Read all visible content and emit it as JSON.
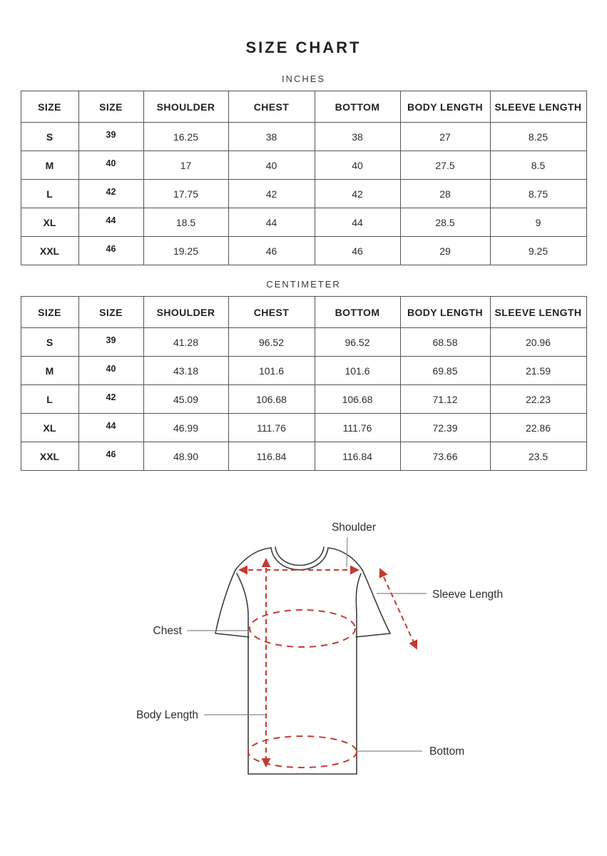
{
  "page": {
    "title": "SIZE CHART"
  },
  "tables": [
    {
      "unit_label": "INCHES",
      "headers": [
        "SIZE",
        "SIZE",
        "SHOULDER",
        "CHEST",
        "BOTTOM",
        "BODY LENGTH",
        "SLEEVE LENGTH"
      ],
      "rows": [
        [
          "S",
          "39",
          "16.25",
          "38",
          "38",
          "27",
          "8.25"
        ],
        [
          "M",
          "40",
          "17",
          "40",
          "40",
          "27.5",
          "8.5"
        ],
        [
          "L",
          "42",
          "17.75",
          "42",
          "42",
          "28",
          "8.75"
        ],
        [
          "XL",
          "44",
          "18.5",
          "44",
          "44",
          "28.5",
          "9"
        ],
        [
          "XXL",
          "46",
          "19.25",
          "46",
          "46",
          "29",
          "9.25"
        ]
      ]
    },
    {
      "unit_label": "CENTIMETER",
      "headers": [
        "SIZE",
        "SIZE",
        "SHOULDER",
        "CHEST",
        "BOTTOM",
        "BODY LENGTH",
        "SLEEVE LENGTH"
      ],
      "rows": [
        [
          "S",
          "39",
          "41.28",
          "96.52",
          "96.52",
          "68.58",
          "20.96"
        ],
        [
          "M",
          "40",
          "43.18",
          "101.6",
          "101.6",
          "69.85",
          "21.59"
        ],
        [
          "L",
          "42",
          "45.09",
          "106.68",
          "106.68",
          "71.12",
          "22.23"
        ],
        [
          "XL",
          "44",
          "46.99",
          "111.76",
          "111.76",
          "72.39",
          "22.86"
        ],
        [
          "XXL",
          "46",
          "48.90",
          "116.84",
          "116.84",
          "73.66",
          "23.5"
        ]
      ]
    }
  ],
  "diagram": {
    "labels": {
      "shoulder": "Shoulder",
      "sleeve_length": "Sleeve Length",
      "chest": "Chest",
      "body_length": "Body Length",
      "bottom": "Bottom"
    },
    "colors": {
      "measure_line": "#c23b32",
      "outline": "#3d3d3d",
      "label_line": "#8a8a8a"
    }
  }
}
